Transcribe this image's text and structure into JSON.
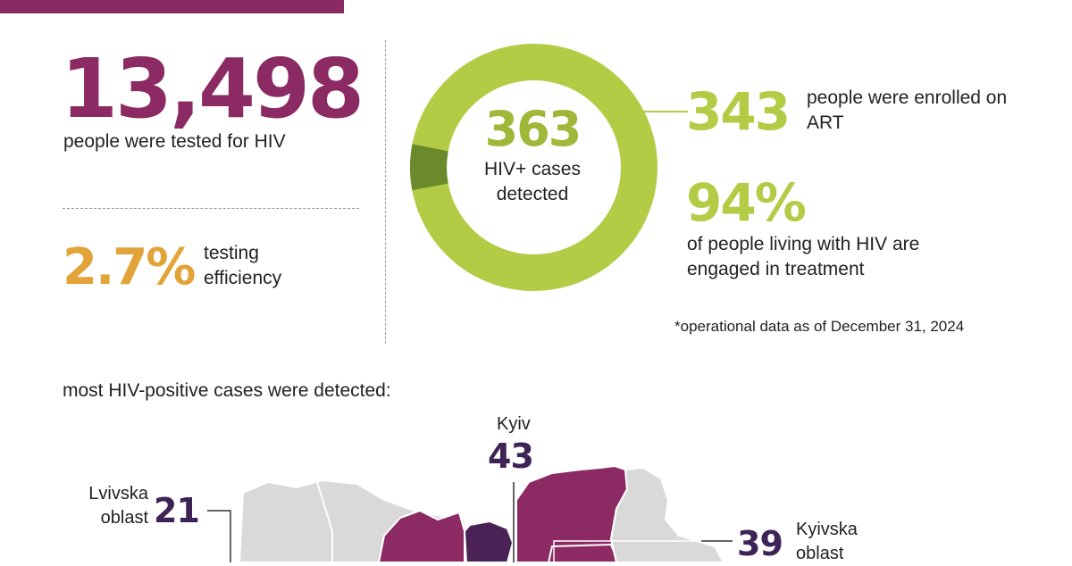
{
  "summary": {
    "tested": {
      "value": "13,498",
      "label": "people were tested for HIV"
    },
    "efficiency": {
      "value": "2.7%",
      "label": "testing efficiency"
    },
    "detected": {
      "value": "363",
      "label": "HIV+ cases detected"
    },
    "art": {
      "value": "343",
      "label": "people were enrolled on ART"
    },
    "treatment": {
      "value": "94%",
      "label": "of people living with HIV are engaged in treatment"
    },
    "footnote": "*operational data as of December 31, 2024"
  },
  "donut": {
    "engaged_fraction": 0.94
  },
  "regions": {
    "title": "most HIV-positive cases were detected:",
    "kyiv": {
      "name": "Kyiv",
      "value": "43"
    },
    "lviv": {
      "name": "Lvivska oblast",
      "value": "21"
    },
    "kyivska": {
      "name": "Kyivska oblast",
      "value": "39"
    }
  },
  "colors": {
    "header": "#8a2a62",
    "tested": "#8c2a64",
    "efficiency": "#e2a339",
    "green": "#b2cc45",
    "green_dark": "#6a8a2c",
    "hiv_number": "#9fb83a",
    "region_number": "#3d2456",
    "map_grey": "#d9d9d9",
    "map_magenta": "#8c2a64",
    "map_purple": "#4b2255"
  },
  "icons": [
    "donut-chart",
    "map-of-ukraine"
  ]
}
